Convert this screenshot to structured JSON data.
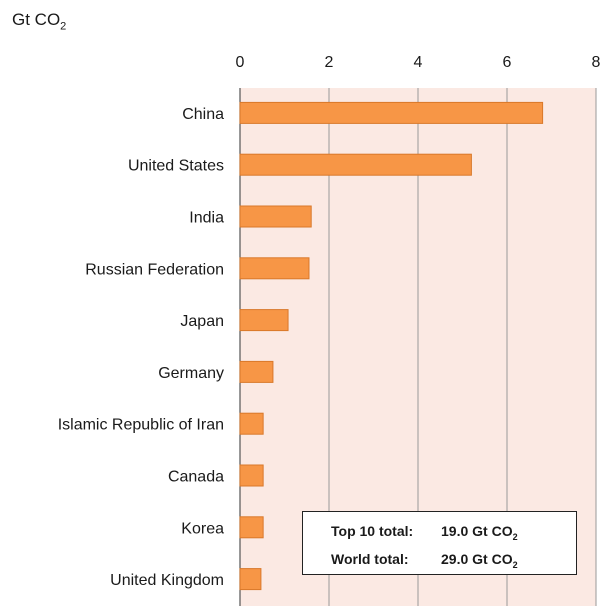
{
  "chart_data": {
    "type": "bar",
    "orientation": "horizontal",
    "unit_label": "Gt CO",
    "unit_subscript": "2",
    "categories": [
      "China",
      "United States",
      "India",
      "Russian Federation",
      "Japan",
      "Germany",
      "Islamic Republic of Iran",
      "Canada",
      "Korea",
      "United Kingdom"
    ],
    "values": [
      6.8,
      5.2,
      1.6,
      1.55,
      1.08,
      0.74,
      0.52,
      0.52,
      0.52,
      0.47
    ],
    "xlim": [
      0,
      8
    ],
    "xticks": [
      "0",
      "2",
      "4",
      "6",
      "8"
    ],
    "grid": true,
    "colors": {
      "bar": "#f79646",
      "bar_edge": "#d9782a",
      "plot_bg": "#fbe9e3",
      "grid": "#999999"
    },
    "annotation": {
      "line1_label": "Top 10 total:",
      "line1_value": "19.0 Gt CO",
      "line2_label": "World total:",
      "line2_value": "29.0 Gt CO",
      "subscript": "2"
    }
  }
}
